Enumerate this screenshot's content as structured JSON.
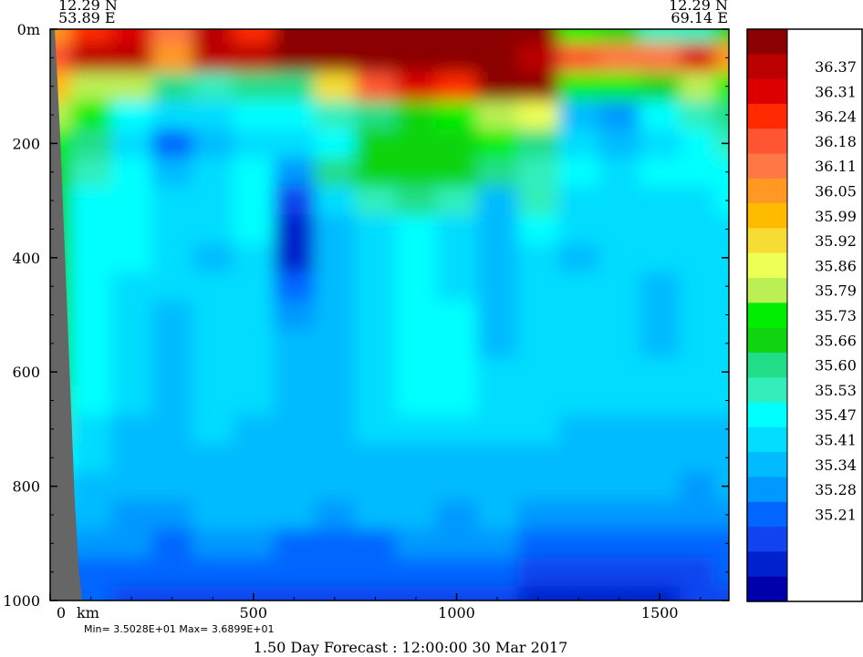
{
  "chart_data": {
    "type": "heatmap",
    "title": "",
    "forecast_label": "1.50 Day Forecast : 12:00:00  30 Mar 2017",
    "stats_label": "Min= 3.5028E+01  Max= 3.6899E+01",
    "start_point": {
      "lat": "12.29 N",
      "lon": "53.89 E"
    },
    "end_point": {
      "lat": "12.29 N",
      "lon": "69.14 E"
    },
    "x_axis": {
      "unit": "km",
      "range": [
        0,
        1670
      ],
      "ticks": [
        0,
        500,
        1000,
        1500
      ],
      "tick_labels": [
        "0",
        "500",
        "1000",
        "1500"
      ]
    },
    "y_axis": {
      "unit": "m",
      "range": [
        0,
        1000
      ],
      "ticks": [
        0,
        200,
        400,
        600,
        800,
        1000
      ],
      "tick_labels": [
        "0m",
        "200",
        "400",
        "600",
        "800",
        "1000"
      ]
    },
    "colorbar": {
      "labels": [
        "36.37",
        "36.31",
        "36.24",
        "36.18",
        "36.11",
        "36.05",
        "35.99",
        "35.92",
        "35.86",
        "35.79",
        "35.73",
        "35.66",
        "35.60",
        "35.53",
        "35.47",
        "35.41",
        "35.34",
        "35.28",
        "35.21"
      ],
      "colors": [
        "#8b0000",
        "#bb0000",
        "#dd0000",
        "#ff2a00",
        "#ff5533",
        "#ff7744",
        "#ff9922",
        "#ffbb00",
        "#f7dd33",
        "#eeff55",
        "#bbf055",
        "#00ee00",
        "#11d411",
        "#22dd88",
        "#33eebb",
        "#00ffff",
        "#00ddff",
        "#00bbff",
        "#0099ff",
        "#0066ff",
        "#1144ee",
        "#0022cc",
        "#0000aa"
      ]
    },
    "profile": {
      "distance_km": [
        0,
        100,
        200,
        300,
        400,
        500,
        600,
        700,
        800,
        900,
        1000,
        1100,
        1200,
        1300,
        1400,
        1500,
        1600,
        1670
      ],
      "depth_m": [
        0,
        50,
        100,
        150,
        200,
        250,
        300,
        350,
        400,
        450,
        500,
        550,
        600,
        650,
        700,
        750,
        800,
        850,
        900,
        950,
        1000
      ],
      "color_index": [
        [
          6,
          3,
          2,
          5,
          1,
          3,
          0,
          0,
          0,
          0,
          0,
          0,
          0,
          11,
          12,
          14,
          14,
          12
        ],
        [
          4,
          1,
          1,
          6,
          1,
          1,
          0,
          0,
          0,
          0,
          0,
          0,
          1,
          4,
          5,
          5,
          2,
          6
        ],
        [
          7,
          10,
          10,
          13,
          14,
          13,
          13,
          8,
          4,
          2,
          3,
          0,
          0,
          11,
          11,
          12,
          10,
          11
        ],
        [
          10,
          11,
          15,
          16,
          16,
          15,
          15,
          14,
          13,
          12,
          11,
          10,
          9,
          17,
          18,
          15,
          14,
          13
        ],
        [
          11,
          13,
          16,
          19,
          17,
          16,
          16,
          15,
          12,
          12,
          12,
          11,
          13,
          16,
          17,
          16,
          15,
          14
        ],
        [
          12,
          14,
          15,
          17,
          16,
          15,
          18,
          13,
          12,
          12,
          12,
          13,
          14,
          15,
          16,
          15,
          15,
          15
        ],
        [
          12,
          15,
          15,
          16,
          16,
          15,
          20,
          16,
          14,
          13,
          14,
          17,
          14,
          16,
          16,
          16,
          16,
          15
        ],
        [
          12,
          15,
          15,
          16,
          16,
          15,
          21,
          17,
          16,
          15,
          16,
          17,
          15,
          16,
          16,
          16,
          16,
          16
        ],
        [
          12,
          15,
          15,
          16,
          17,
          16,
          21,
          17,
          16,
          15,
          16,
          17,
          16,
          17,
          16,
          16,
          16,
          16
        ],
        [
          12,
          15,
          16,
          16,
          16,
          16,
          19,
          17,
          16,
          15,
          16,
          17,
          16,
          16,
          16,
          17,
          16,
          16
        ],
        [
          12,
          15,
          16,
          17,
          16,
          16,
          18,
          17,
          16,
          15,
          15,
          17,
          16,
          16,
          16,
          17,
          16,
          16
        ],
        [
          12,
          15,
          16,
          17,
          16,
          16,
          17,
          17,
          16,
          15,
          15,
          17,
          16,
          16,
          16,
          17,
          16,
          16
        ],
        [
          12,
          15,
          16,
          17,
          16,
          16,
          17,
          17,
          16,
          15,
          15,
          16,
          16,
          16,
          16,
          16,
          16,
          16
        ],
        [
          13,
          15,
          16,
          17,
          16,
          16,
          17,
          17,
          16,
          15,
          15,
          16,
          16,
          16,
          16,
          16,
          16,
          16
        ],
        [
          14,
          16,
          17,
          17,
          16,
          17,
          17,
          17,
          16,
          16,
          16,
          16,
          16,
          17,
          17,
          17,
          17,
          17
        ],
        [
          15,
          16,
          17,
          17,
          17,
          17,
          17,
          17,
          17,
          17,
          17,
          17,
          17,
          17,
          17,
          17,
          17,
          17
        ],
        [
          16,
          17,
          17,
          17,
          17,
          17,
          17,
          17,
          17,
          17,
          17,
          17,
          17,
          17,
          17,
          17,
          18,
          17
        ],
        [
          17,
          17,
          18,
          18,
          17,
          17,
          17,
          18,
          17,
          17,
          18,
          17,
          18,
          18,
          18,
          18,
          18,
          18
        ],
        [
          18,
          18,
          18,
          19,
          18,
          18,
          19,
          19,
          19,
          18,
          18,
          18,
          19,
          19,
          19,
          19,
          19,
          19
        ],
        [
          19,
          19,
          19,
          19,
          19,
          19,
          19,
          19,
          19,
          19,
          19,
          19,
          20,
          20,
          20,
          20,
          20,
          19
        ],
        [
          19,
          19,
          20,
          20,
          20,
          20,
          20,
          20,
          20,
          20,
          20,
          20,
          21,
          21,
          21,
          21,
          20,
          20
        ]
      ]
    }
  }
}
